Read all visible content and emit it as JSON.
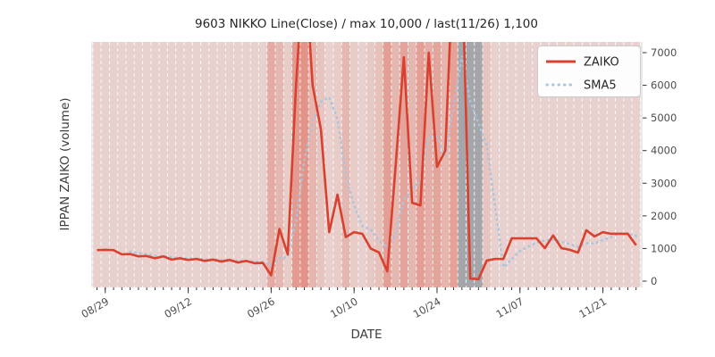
{
  "title": "9603 NIKKO Line(Close) / max 10,000 / last(11/26) 1,100",
  "axes": {
    "x_label": "DATE",
    "y_label": "IPPAN ZAIKO (volume)"
  },
  "legend": {
    "items": [
      {
        "label": "ZAIKO",
        "color": "#d9402e",
        "style": "solid"
      },
      {
        "label": "SMA5",
        "color": "#a9c5dd",
        "style": "dotted"
      }
    ]
  },
  "chart_data": {
    "type": "line",
    "title": "9603 NIKKO Line(Close) / max 10,000 / last(11/26) 1,100",
    "xlabel": "DATE",
    "ylabel": "IPPAN ZAIKO (volume)",
    "ylim": [
      0,
      7300
    ],
    "y_ticks": [
      0,
      1000,
      2000,
      3000,
      4000,
      5000,
      6000,
      7000
    ],
    "x_major_ticks": [
      {
        "label": "08/29",
        "day": 1
      },
      {
        "label": "09/12",
        "day": 11
      },
      {
        "label": "09/26",
        "day": 21
      },
      {
        "label": "10/10",
        "day": 31
      },
      {
        "label": "10/24",
        "day": 41
      },
      {
        "label": "11/07",
        "day": 51
      },
      {
        "label": "11/21",
        "day": 61
      }
    ],
    "grid": "vertical-white-dashed",
    "legend_position": "upper-right",
    "series": [
      {
        "name": "ZAIKO",
        "color": "#d9402e",
        "style": "solid",
        "start_day": 0,
        "values": [
          950,
          960,
          950,
          820,
          830,
          760,
          770,
          700,
          760,
          660,
          700,
          650,
          680,
          620,
          660,
          600,
          650,
          570,
          620,
          550,
          560,
          180,
          1600,
          820,
          6000,
          10000,
          6000,
          4650,
          1500,
          2650,
          1350,
          1500,
          1450,
          1000,
          880,
          300,
          3500,
          6860,
          2400,
          2320,
          7000,
          3500,
          4000,
          10000,
          10000,
          80,
          60,
          630,
          680,
          680,
          1310,
          1310,
          1310,
          1310,
          1010,
          1400,
          1010,
          960,
          875,
          1560,
          1370,
          1500,
          1450,
          1450,
          1450,
          1100
        ]
      },
      {
        "name": "SMA5",
        "color": "#a9c5dd",
        "style": "dotted",
        "start_day": 4,
        "values": [
          902,
          864,
          826,
          776,
          764,
          730,
          718,
          694,
          690,
          662,
          662,
          642,
          642,
          620,
          620,
          598,
          590,
          496,
          702,
          742,
          1832,
          3720,
          4884,
          5494,
          5630,
          4960,
          3230,
          2330,
          1690,
          1590,
          1236,
          1026,
          1426,
          2508,
          2788,
          3076,
          4416,
          4416,
          3844,
          5364,
          6900,
          5516,
          4828,
          4154,
          2290,
          426,
          672,
          922,
          1058,
          1184,
          1250,
          1268,
          1208,
          1138,
          1051,
          1161,
          1155,
          1253,
          1351,
          1466,
          1444,
          1390
        ]
      }
    ],
    "background_day_shading": {
      "base_color_rgb": [
        220,
        70,
        50
      ],
      "gray_color": "#a5a6aa",
      "gray_days": [
        44,
        45,
        46
      ],
      "alphas": [
        0.15,
        0.15,
        0.15,
        0.15,
        0.15,
        0.15,
        0.15,
        0.15,
        0.15,
        0.15,
        0.15,
        0.15,
        0.15,
        0.15,
        0.15,
        0.15,
        0.15,
        0.15,
        0.15,
        0.15,
        0.15,
        0.38,
        0.3,
        0.18,
        0.48,
        0.52,
        0.32,
        0.22,
        0.15,
        0.18,
        0.3,
        0.18,
        0.15,
        0.2,
        0.24,
        0.46,
        0.3,
        0.42,
        0.3,
        0.46,
        0.36,
        0.42,
        0.32,
        0.44,
        0,
        0,
        0,
        0.22,
        0.15,
        0.15,
        0.15,
        0.15,
        0.15,
        0.15,
        0.15,
        0.15,
        0.15,
        0.15,
        0.15,
        0.15,
        0.15,
        0.15,
        0.15,
        0.15,
        0.15,
        0.15
      ]
    }
  },
  "colors": {
    "zaiko_line": "#d9402e",
    "sma5_line": "#a9c5dd",
    "axes_background": "#e9e9e9",
    "gridline": "#ffffff",
    "tick": "#333333",
    "legend_border": "#cccccc"
  }
}
